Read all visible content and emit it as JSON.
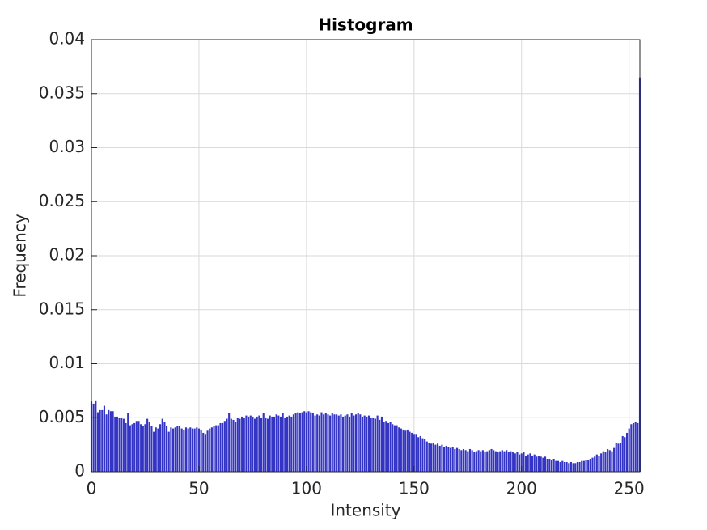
{
  "chart_data": {
    "type": "bar",
    "title": "Histogram",
    "xlabel": "Intensity",
    "ylabel": "Frequency",
    "color": "#3434c4",
    "grid": true,
    "xlim": [
      0,
      255
    ],
    "xticks": [
      0,
      50,
      100,
      150,
      200,
      250
    ],
    "ylim": [
      0,
      0.04
    ],
    "yticks": [
      0,
      0.005,
      0.01,
      0.015,
      0.02,
      0.025,
      0.03,
      0.035,
      0.04
    ],
    "x": [
      0,
      1,
      2,
      3,
      4,
      5,
      6,
      7,
      8,
      9,
      10,
      11,
      12,
      13,
      14,
      15,
      16,
      17,
      18,
      19,
      20,
      21,
      22,
      23,
      24,
      25,
      26,
      27,
      28,
      29,
      30,
      31,
      32,
      33,
      34,
      35,
      36,
      37,
      38,
      39,
      40,
      41,
      42,
      43,
      44,
      45,
      46,
      47,
      48,
      49,
      50,
      51,
      52,
      53,
      54,
      55,
      56,
      57,
      58,
      59,
      60,
      61,
      62,
      63,
      64,
      65,
      66,
      67,
      68,
      69,
      70,
      71,
      72,
      73,
      74,
      75,
      76,
      77,
      78,
      79,
      80,
      81,
      82,
      83,
      84,
      85,
      86,
      87,
      88,
      89,
      90,
      91,
      92,
      93,
      94,
      95,
      96,
      97,
      98,
      99,
      100,
      101,
      102,
      103,
      104,
      105,
      106,
      107,
      108,
      109,
      110,
      111,
      112,
      113,
      114,
      115,
      116,
      117,
      118,
      119,
      120,
      121,
      122,
      123,
      124,
      125,
      126,
      127,
      128,
      129,
      130,
      131,
      132,
      133,
      134,
      135,
      136,
      137,
      138,
      139,
      140,
      141,
      142,
      143,
      144,
      145,
      146,
      147,
      148,
      149,
      150,
      151,
      152,
      153,
      154,
      155,
      156,
      157,
      158,
      159,
      160,
      161,
      162,
      163,
      164,
      165,
      166,
      167,
      168,
      169,
      170,
      171,
      172,
      173,
      174,
      175,
      176,
      177,
      178,
      179,
      180,
      181,
      182,
      183,
      184,
      185,
      186,
      187,
      188,
      189,
      190,
      191,
      192,
      193,
      194,
      195,
      196,
      197,
      198,
      199,
      200,
      201,
      202,
      203,
      204,
      205,
      206,
      207,
      208,
      209,
      210,
      211,
      212,
      213,
      214,
      215,
      216,
      217,
      218,
      219,
      220,
      221,
      222,
      223,
      224,
      225,
      226,
      227,
      228,
      229,
      230,
      231,
      232,
      233,
      234,
      235,
      236,
      237,
      238,
      239,
      240,
      241,
      242,
      243,
      244,
      245,
      246,
      247,
      248,
      249,
      250,
      251,
      252,
      253,
      254,
      255
    ],
    "values": [
      0.0065,
      0.0063,
      0.0066,
      0.0055,
      0.0057,
      0.0057,
      0.0061,
      0.0053,
      0.0057,
      0.0056,
      0.0056,
      0.0051,
      0.0051,
      0.005,
      0.005,
      0.0049,
      0.0045,
      0.0054,
      0.0043,
      0.0044,
      0.0045,
      0.0047,
      0.0047,
      0.0044,
      0.0042,
      0.0044,
      0.0049,
      0.0046,
      0.0042,
      0.0037,
      0.0041,
      0.004,
      0.0044,
      0.0049,
      0.0046,
      0.0042,
      0.0037,
      0.0041,
      0.004,
      0.0041,
      0.0042,
      0.0042,
      0.004,
      0.0039,
      0.0041,
      0.004,
      0.0041,
      0.004,
      0.004,
      0.0041,
      0.004,
      0.0039,
      0.0036,
      0.0035,
      0.0038,
      0.004,
      0.0041,
      0.0042,
      0.0043,
      0.0043,
      0.0045,
      0.0045,
      0.0047,
      0.0049,
      0.0054,
      0.0049,
      0.0048,
      0.0046,
      0.005,
      0.0049,
      0.0051,
      0.005,
      0.0052,
      0.0051,
      0.0052,
      0.0051,
      0.0049,
      0.0051,
      0.0052,
      0.005,
      0.0054,
      0.005,
      0.0049,
      0.0052,
      0.0051,
      0.0051,
      0.0053,
      0.0052,
      0.0051,
      0.0054,
      0.005,
      0.0051,
      0.0052,
      0.0051,
      0.0053,
      0.0054,
      0.0055,
      0.0054,
      0.0055,
      0.0056,
      0.0055,
      0.0056,
      0.0055,
      0.0054,
      0.0052,
      0.0053,
      0.0052,
      0.0055,
      0.0053,
      0.0054,
      0.0053,
      0.0052,
      0.0054,
      0.0053,
      0.0053,
      0.0052,
      0.0053,
      0.0051,
      0.0052,
      0.0053,
      0.0051,
      0.0054,
      0.0052,
      0.0053,
      0.0054,
      0.0053,
      0.0051,
      0.0052,
      0.0051,
      0.0052,
      0.005,
      0.005,
      0.0049,
      0.0052,
      0.0048,
      0.0051,
      0.0046,
      0.0047,
      0.0045,
      0.0046,
      0.0044,
      0.0043,
      0.0043,
      0.0041,
      0.004,
      0.0039,
      0.0038,
      0.0039,
      0.0037,
      0.0036,
      0.0035,
      0.0035,
      0.0032,
      0.0033,
      0.0031,
      0.003,
      0.0028,
      0.0027,
      0.0026,
      0.0027,
      0.0025,
      0.0026,
      0.0024,
      0.0025,
      0.0023,
      0.0024,
      0.0023,
      0.0022,
      0.0023,
      0.0021,
      0.0022,
      0.0021,
      0.002,
      0.0021,
      0.002,
      0.0019,
      0.0021,
      0.002,
      0.0018,
      0.0019,
      0.002,
      0.0019,
      0.002,
      0.0018,
      0.0019,
      0.002,
      0.0021,
      0.002,
      0.0019,
      0.0018,
      0.0019,
      0.002,
      0.0019,
      0.002,
      0.0018,
      0.0019,
      0.0018,
      0.0017,
      0.0018,
      0.0016,
      0.0017,
      0.0018,
      0.0015,
      0.0016,
      0.0017,
      0.0015,
      0.0016,
      0.0014,
      0.0015,
      0.0014,
      0.0013,
      0.0014,
      0.0012,
      0.0012,
      0.0011,
      0.0012,
      0.001,
      0.001,
      0.0009,
      0.001,
      0.0009,
      0.0009,
      0.0008,
      0.0009,
      0.0008,
      0.0008,
      0.0009,
      0.0009,
      0.001,
      0.001,
      0.0011,
      0.0011,
      0.0012,
      0.0013,
      0.0014,
      0.0016,
      0.0015,
      0.0017,
      0.0019,
      0.0018,
      0.0021,
      0.002,
      0.0019,
      0.0022,
      0.0027,
      0.0026,
      0.0027,
      0.0033,
      0.0032,
      0.0036,
      0.004,
      0.0044,
      0.0045,
      0.0046,
      0.0045,
      0.0365
    ]
  }
}
